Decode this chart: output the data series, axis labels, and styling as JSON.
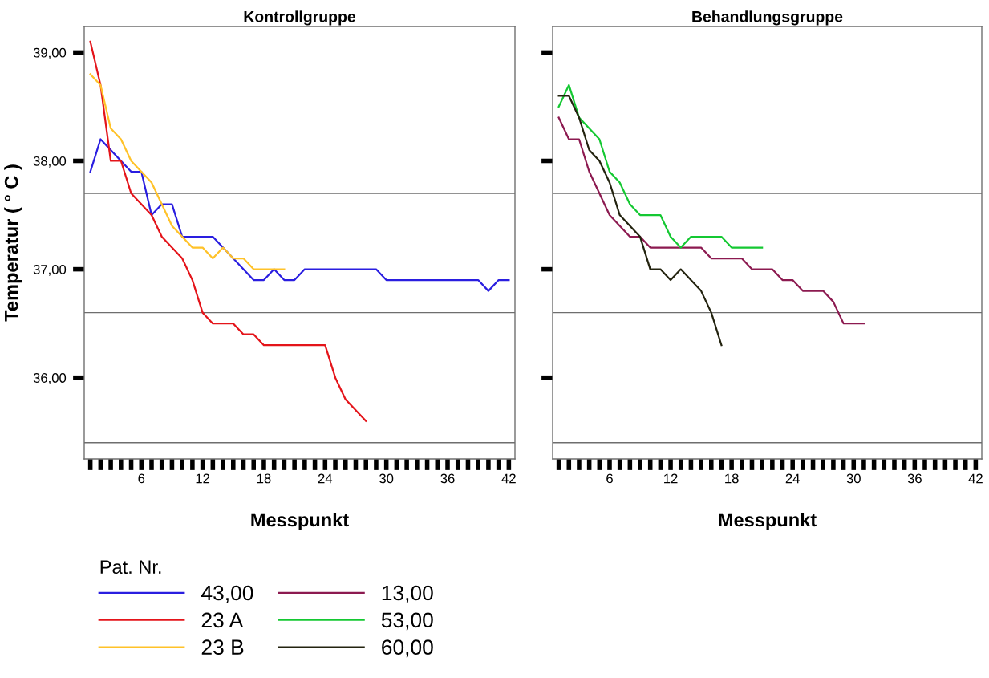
{
  "chart_data": [
    {
      "type": "line",
      "title": "Kontrollgruppe",
      "xlabel": "Messpunkt",
      "ylabel": "Temperatur ( ° C )",
      "legend": "bottom left",
      "legend_title": "Pat. Nr.",
      "x": [
        1,
        2,
        3,
        4,
        5,
        6,
        7,
        8,
        9,
        10,
        11,
        12,
        13,
        14,
        15,
        16,
        17,
        18,
        19,
        20,
        21,
        22,
        23,
        24,
        25,
        26,
        27,
        28,
        29,
        30,
        31,
        32,
        33,
        34,
        35,
        36,
        37,
        38,
        39,
        40,
        41,
        42
      ],
      "xlim": [
        0.4,
        42.6
      ],
      "ylim": [
        35.25,
        39.24
      ],
      "xticks": [
        {
          "value": 1,
          "label": null
        },
        {
          "value": 2,
          "label": null
        },
        {
          "value": 3,
          "label": null
        },
        {
          "value": 4,
          "label": null
        },
        {
          "value": 5,
          "label": null
        },
        6,
        {
          "value": 7,
          "label": null
        },
        {
          "value": 8,
          "label": null
        },
        {
          "value": 9,
          "label": null
        },
        {
          "value": 10,
          "label": null
        },
        {
          "value": 11,
          "label": null
        },
        12,
        {
          "value": 13,
          "label": null
        },
        {
          "value": 14,
          "label": null
        },
        {
          "value": 15,
          "label": null
        },
        {
          "value": 16,
          "label": null
        },
        {
          "value": 17,
          "label": null
        },
        18,
        {
          "value": 19,
          "label": null
        },
        {
          "value": 20,
          "label": null
        },
        {
          "value": 21,
          "label": null
        },
        {
          "value": 22,
          "label": null
        },
        {
          "value": 23,
          "label": null
        },
        24,
        {
          "value": 25,
          "label": null
        },
        {
          "value": 26,
          "label": null
        },
        {
          "value": 27,
          "label": null
        },
        {
          "value": 28,
          "label": null
        },
        {
          "value": 29,
          "label": null
        },
        30,
        {
          "value": 31,
          "label": null
        },
        {
          "value": 32,
          "label": null
        },
        {
          "value": 33,
          "label": null
        },
        {
          "value": 34,
          "label": null
        },
        {
          "value": 35,
          "label": null
        },
        36,
        {
          "value": 37,
          "label": null
        },
        {
          "value": 38,
          "label": null
        },
        {
          "value": 39,
          "label": null
        },
        {
          "value": 40,
          "label": null
        },
        {
          "value": 41,
          "label": null
        },
        42
      ],
      "yticks": [
        {
          "value": 36,
          "label": "36,00"
        },
        {
          "value": 37,
          "label": "37,00"
        },
        {
          "value": 38,
          "label": "38,00"
        },
        {
          "value": 39,
          "label": "39,00"
        }
      ],
      "ref_lines": [
        {
          "axis": "y",
          "value": 37.7,
          "color": "#6e6e6e"
        },
        {
          "axis": "y",
          "value": 36.6,
          "color": "#6e6e6e"
        },
        {
          "axis": "y",
          "value": 35.4,
          "color": "#6e6e6e"
        }
      ],
      "series": [
        {
          "name": "43,00",
          "color": "#2a1ee0",
          "values": [
            37.9,
            38.2,
            38.1,
            38.0,
            37.9,
            37.9,
            37.5,
            37.6,
            37.6,
            37.3,
            37.3,
            37.3,
            37.3,
            37.2,
            37.1,
            37.0,
            36.9,
            36.9,
            37.0,
            36.9,
            36.9,
            37.0,
            37.0,
            37.0,
            37.0,
            37.0,
            37.0,
            37.0,
            37.0,
            36.9,
            36.9,
            36.9,
            36.9,
            36.9,
            36.9,
            36.9,
            36.9,
            36.9,
            36.9,
            36.8,
            36.9,
            36.9
          ]
        },
        {
          "name": "23 A",
          "color": "#e4141a",
          "values": [
            39.1,
            38.7,
            38.0,
            38.0,
            37.7,
            37.6,
            37.5,
            37.3,
            37.2,
            37.1,
            36.9,
            36.6,
            36.5,
            36.5,
            36.5,
            36.4,
            36.4,
            36.3,
            36.3,
            36.3,
            36.3,
            36.3,
            36.3,
            36.3,
            36.0,
            35.8,
            35.7,
            35.6,
            null,
            null,
            null,
            null,
            null,
            null,
            null,
            null,
            null,
            null,
            null,
            null,
            null,
            null
          ]
        },
        {
          "name": "23 B",
          "color": "#ffc229",
          "values": [
            38.8,
            38.7,
            38.3,
            38.2,
            38.0,
            37.9,
            37.8,
            37.6,
            37.4,
            37.3,
            37.2,
            37.2,
            37.1,
            37.2,
            37.1,
            37.1,
            37.0,
            37.0,
            37.0,
            37.0,
            null,
            null,
            null,
            null,
            null,
            null,
            null,
            null,
            null,
            null,
            null,
            null,
            null,
            null,
            null,
            null,
            null,
            null,
            null,
            null,
            null,
            null
          ]
        }
      ]
    },
    {
      "type": "line",
      "title": "Behandlungsgruppe",
      "xlabel": "Messpunkt",
      "tick_labels": "x",
      "legend": "bottom left",
      "x": [
        1,
        2,
        3,
        4,
        5,
        6,
        7,
        8,
        9,
        10,
        11,
        12,
        13,
        14,
        15,
        16,
        17,
        18,
        19,
        20,
        21,
        22,
        23,
        24,
        25,
        26,
        27,
        28,
        29,
        30,
        31
      ],
      "xlim": [
        0.4,
        42.6
      ],
      "ylim": [
        35.25,
        39.24
      ],
      "xticks": [
        {
          "value": 1,
          "label": null
        },
        {
          "value": 2,
          "label": null
        },
        {
          "value": 3,
          "label": null
        },
        {
          "value": 4,
          "label": null
        },
        {
          "value": 5,
          "label": null
        },
        6,
        {
          "value": 7,
          "label": null
        },
        {
          "value": 8,
          "label": null
        },
        {
          "value": 9,
          "label": null
        },
        {
          "value": 10,
          "label": null
        },
        {
          "value": 11,
          "label": null
        },
        12,
        {
          "value": 13,
          "label": null
        },
        {
          "value": 14,
          "label": null
        },
        {
          "value": 15,
          "label": null
        },
        {
          "value": 16,
          "label": null
        },
        {
          "value": 17,
          "label": null
        },
        18,
        {
          "value": 19,
          "label": null
        },
        {
          "value": 20,
          "label": null
        },
        {
          "value": 21,
          "label": null
        },
        {
          "value": 22,
          "label": null
        },
        {
          "value": 23,
          "label": null
        },
        24,
        {
          "value": 25,
          "label": null
        },
        {
          "value": 26,
          "label": null
        },
        {
          "value": 27,
          "label": null
        },
        {
          "value": 28,
          "label": null
        },
        {
          "value": 29,
          "label": null
        },
        30,
        {
          "value": 31,
          "label": null
        },
        {
          "value": 32,
          "label": null
        },
        {
          "value": 33,
          "label": null
        },
        {
          "value": 34,
          "label": null
        },
        {
          "value": 35,
          "label": null
        },
        36,
        {
          "value": 37,
          "label": null
        },
        {
          "value": 38,
          "label": null
        },
        {
          "value": 39,
          "label": null
        },
        {
          "value": 40,
          "label": null
        },
        {
          "value": 41,
          "label": null
        },
        42
      ],
      "yticks": [
        {
          "value": 36,
          "label": null
        },
        {
          "value": 37,
          "label": null
        },
        {
          "value": 38,
          "label": null
        },
        {
          "value": 39,
          "label": null
        }
      ],
      "ref_lines": [
        {
          "axis": "y",
          "value": 37.7,
          "color": "#6e6e6e"
        },
        {
          "axis": "y",
          "value": 36.6,
          "color": "#6e6e6e"
        },
        {
          "axis": "y",
          "value": 35.4,
          "color": "#6e6e6e"
        }
      ],
      "series": [
        {
          "name": "13,00",
          "color": "#8c1a50",
          "values": [
            38.4,
            38.2,
            38.2,
            37.9,
            37.7,
            37.5,
            37.4,
            37.3,
            37.3,
            37.2,
            37.2,
            37.2,
            37.2,
            37.2,
            37.2,
            37.1,
            37.1,
            37.1,
            37.1,
            37.0,
            37.0,
            37.0,
            36.9,
            36.9,
            36.8,
            36.8,
            36.8,
            36.7,
            36.5,
            36.5,
            36.5
          ]
        },
        {
          "name": "53,00",
          "color": "#14c832",
          "values": [
            38.5,
            38.7,
            38.4,
            38.3,
            38.2,
            37.9,
            37.8,
            37.6,
            37.5,
            37.5,
            37.5,
            37.3,
            37.2,
            37.3,
            37.3,
            37.3,
            37.3,
            37.2,
            37.2,
            37.2,
            37.2,
            null,
            null,
            null,
            null,
            null,
            null,
            null,
            null,
            null,
            null
          ]
        },
        {
          "name": "60,00",
          "color": "#23230f",
          "values": [
            38.6,
            38.6,
            38.4,
            38.1,
            38.0,
            37.8,
            37.5,
            37.4,
            37.3,
            37.0,
            37.0,
            36.9,
            37.0,
            36.9,
            36.8,
            36.6,
            36.3,
            null,
            null,
            null,
            null,
            null,
            null,
            null,
            null,
            null,
            null,
            null,
            null,
            null,
            null
          ]
        }
      ]
    }
  ]
}
